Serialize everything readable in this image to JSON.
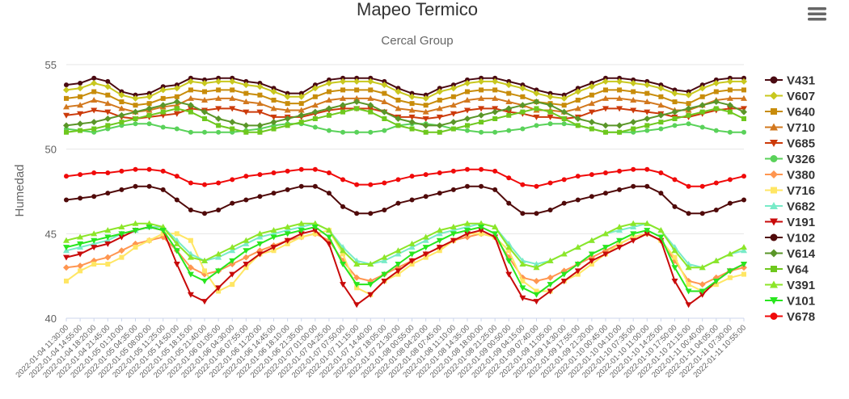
{
  "chart": {
    "title": "Mapeo Termico",
    "subtitle": "Cercal Group",
    "menu_icon": "hamburger-menu-icon"
  },
  "chart_data": {
    "type": "line",
    "title": "Mapeo Termico",
    "subtitle": "Cercal Group",
    "xlabel": "",
    "ylabel": "Humedad",
    "ylim": [
      40,
      55
    ],
    "yticks": [
      40,
      45,
      50,
      55
    ],
    "grid": true,
    "legend_position": "right",
    "x_ticks": [
      "2022-01-04 11:30:00",
      "2022-01-04 14:55:00",
      "2022-01-04 18:20:00",
      "2022-01-04 21:45:00",
      "2022-01-05 01:10:00",
      "2022-01-05 04:35:00",
      "2022-01-05 08:00:00",
      "2022-01-05 11:25:00",
      "2022-01-05 14:50:00",
      "2022-01-05 18:15:00",
      "2022-01-05 21:40:00",
      "2022-01-06 01:05:00",
      "2022-01-06 04:30:00",
      "2022-01-06 07:55:00",
      "2022-01-06 11:20:00",
      "2022-01-06 14:45:00",
      "2022-01-06 18:10:00",
      "2022-01-06 21:35:00",
      "2022-01-07 01:00:00",
      "2022-01-07 04:25:00",
      "2022-01-07 07:50:00",
      "2022-01-07 11:15:00",
      "2022-01-07 14:40:00",
      "2022-01-07 18:05:00",
      "2022-01-07 21:30:00",
      "2022-01-08 00:55:00",
      "2022-01-08 04:20:00",
      "2022-01-08 07:45:00",
      "2022-01-08 11:10:00",
      "2022-01-08 14:35:00",
      "2022-01-08 18:00:00",
      "2022-01-08 21:25:00",
      "2022-01-09 00:50:00",
      "2022-01-09 04:15:00",
      "2022-01-09 07:40:00",
      "2022-01-09 11:05:00",
      "2022-01-09 14:30:00",
      "2022-01-09 17:55:00",
      "2022-01-09 21:20:00",
      "2022-01-10 00:45:00",
      "2022-01-10 04:10:00",
      "2022-01-10 07:35:00",
      "2022-01-10 11:00:00",
      "2022-01-10 14:25:00",
      "2022-01-10 17:50:00",
      "2022-01-10 21:15:00",
      "2022-01-11 00:40:00",
      "2022-01-11 04:05:00",
      "2022-01-11 07:30:00",
      "2022-01-11 10:55:00"
    ],
    "series": [
      {
        "name": "V431",
        "color": "#4a0a12",
        "marker": "circle",
        "values": [
          53.8,
          53.9,
          54.2,
          54.0,
          53.4,
          53.2,
          53.3,
          53.7,
          53.8,
          54.2,
          54.1,
          54.2,
          54.2,
          54.0,
          53.9,
          53.6,
          53.3,
          53.3,
          53.8,
          54.1,
          54.2,
          54.2,
          54.2,
          54.0,
          53.6,
          53.3,
          53.2,
          53.6,
          53.8,
          54.1,
          54.2,
          54.2,
          54.0,
          53.8,
          53.5,
          53.3,
          53.2,
          53.6,
          53.9,
          54.2,
          54.2,
          54.1,
          54.0,
          53.8,
          53.5,
          53.4,
          53.8,
          54.1,
          54.2,
          54.2
        ]
      },
      {
        "name": "V607",
        "color": "#c8c81e",
        "marker": "diamond",
        "values": [
          53.5,
          53.6,
          53.9,
          53.7,
          53.2,
          53.0,
          53.1,
          53.5,
          53.6,
          54.0,
          53.9,
          54.0,
          54.0,
          53.8,
          53.7,
          53.4,
          53.1,
          53.1,
          53.6,
          53.9,
          54.0,
          54.0,
          54.0,
          53.8,
          53.4,
          53.1,
          53.0,
          53.4,
          53.6,
          53.9,
          54.0,
          54.0,
          53.8,
          53.6,
          53.3,
          53.1,
          53.0,
          53.4,
          53.7,
          54.0,
          54.0,
          53.9,
          53.8,
          53.6,
          53.3,
          53.2,
          53.6,
          53.9,
          54.0,
          54.0
        ]
      },
      {
        "name": "V640",
        "color": "#c88c0a",
        "marker": "square",
        "values": [
          53.0,
          53.1,
          53.4,
          53.2,
          52.8,
          52.6,
          52.7,
          53.0,
          53.1,
          53.5,
          53.4,
          53.5,
          53.5,
          53.3,
          53.2,
          52.9,
          52.7,
          52.7,
          53.1,
          53.4,
          53.5,
          53.5,
          53.5,
          53.3,
          52.9,
          52.7,
          52.6,
          52.9,
          53.1,
          53.4,
          53.5,
          53.5,
          53.3,
          53.1,
          52.8,
          52.7,
          52.6,
          52.9,
          53.2,
          53.5,
          53.5,
          53.4,
          53.3,
          53.1,
          52.8,
          52.7,
          53.1,
          53.4,
          53.5,
          53.5
        ]
      },
      {
        "name": "V710",
        "color": "#d2781e",
        "marker": "triangle",
        "values": [
          52.5,
          52.6,
          52.9,
          52.7,
          52.4,
          52.2,
          52.3,
          52.5,
          52.6,
          53.0,
          52.9,
          53.0,
          53.0,
          52.8,
          52.7,
          52.4,
          52.3,
          52.3,
          52.6,
          52.9,
          53.0,
          53.0,
          53.0,
          52.8,
          52.4,
          52.3,
          52.2,
          52.4,
          52.6,
          52.9,
          53.0,
          53.0,
          52.8,
          52.6,
          52.3,
          52.3,
          52.2,
          52.4,
          52.7,
          53.0,
          53.0,
          52.9,
          52.8,
          52.6,
          52.3,
          52.3,
          52.6,
          52.9,
          53.0,
          53.0
        ]
      },
      {
        "name": "V685",
        "color": "#cc3a0a",
        "marker": "triangle-down",
        "values": [
          52.0,
          52.1,
          52.3,
          52.2,
          51.9,
          51.8,
          51.9,
          52.0,
          52.1,
          52.4,
          52.3,
          52.4,
          52.4,
          52.2,
          52.2,
          51.9,
          51.9,
          51.9,
          52.1,
          52.3,
          52.4,
          52.4,
          52.4,
          52.2,
          51.9,
          51.9,
          51.8,
          51.9,
          52.1,
          52.3,
          52.4,
          52.4,
          52.2,
          52.1,
          51.9,
          51.9,
          51.8,
          51.9,
          52.2,
          52.4,
          52.4,
          52.3,
          52.2,
          52.1,
          51.9,
          51.9,
          52.1,
          52.3,
          52.4,
          52.4
        ]
      },
      {
        "name": "V326",
        "color": "#5ad25a",
        "marker": "circle",
        "values": [
          51.2,
          51.1,
          51.0,
          51.2,
          51.4,
          51.5,
          51.5,
          51.3,
          51.2,
          51.0,
          51.0,
          51.0,
          51.0,
          51.1,
          51.2,
          51.4,
          51.5,
          51.5,
          51.3,
          51.1,
          51.0,
          51.0,
          51.0,
          51.1,
          51.4,
          51.5,
          51.5,
          51.4,
          51.2,
          51.1,
          51.0,
          51.0,
          51.1,
          51.2,
          51.4,
          51.5,
          51.5,
          51.4,
          51.2,
          51.0,
          51.0,
          51.0,
          51.1,
          51.2,
          51.4,
          51.5,
          51.3,
          51.1,
          51.0,
          51.0
        ]
      },
      {
        "name": "V380",
        "color": "#ff9650",
        "marker": "diamond",
        "values": [
          43.0,
          43.1,
          43.4,
          43.6,
          44.0,
          44.4,
          44.6,
          44.8,
          44.0,
          43.0,
          42.6,
          42.8,
          43.2,
          43.6,
          44.0,
          44.3,
          44.6,
          44.8,
          45.0,
          44.6,
          43.4,
          42.4,
          42.2,
          42.6,
          43.0,
          43.4,
          43.8,
          44.2,
          44.6,
          44.8,
          45.0,
          44.8,
          43.6,
          42.4,
          42.2,
          42.4,
          42.8,
          43.2,
          43.6,
          44.0,
          44.4,
          44.8,
          45.0,
          44.6,
          43.4,
          42.2,
          42.0,
          42.4,
          42.8,
          43.0
        ]
      },
      {
        "name": "V716",
        "color": "#ffe664",
        "marker": "square",
        "values": [
          42.2,
          42.8,
          43.2,
          43.2,
          43.6,
          44.2,
          44.6,
          45.0,
          45.0,
          44.6,
          42.8,
          41.6,
          42.0,
          43.0,
          43.8,
          44.0,
          44.4,
          44.8,
          45.0,
          45.2,
          43.8,
          41.8,
          41.4,
          42.2,
          42.6,
          43.2,
          43.6,
          44.0,
          44.6,
          45.0,
          45.0,
          44.8,
          44.0,
          42.2,
          41.6,
          41.6,
          42.2,
          42.6,
          43.2,
          43.8,
          44.4,
          44.8,
          45.0,
          44.6,
          43.6,
          42.0,
          41.6,
          42.0,
          42.4,
          42.6
        ]
      },
      {
        "name": "V682",
        "color": "#78ebc8",
        "marker": "triangle",
        "values": [
          44.0,
          44.2,
          44.4,
          44.6,
          45.0,
          45.2,
          45.4,
          45.4,
          44.6,
          43.8,
          43.4,
          43.6,
          44.0,
          44.4,
          44.8,
          45.0,
          45.2,
          45.4,
          45.6,
          45.2,
          44.2,
          43.4,
          43.2,
          43.4,
          43.8,
          44.2,
          44.6,
          45.0,
          45.2,
          45.4,
          45.6,
          45.4,
          44.4,
          43.4,
          43.2,
          43.4,
          43.8,
          44.2,
          44.6,
          45.0,
          45.2,
          45.4,
          45.6,
          45.2,
          44.2,
          43.2,
          43.0,
          43.4,
          43.8,
          44.0
        ]
      },
      {
        "name": "V191",
        "color": "#c80a0a",
        "marker": "triangle-down",
        "values": [
          43.6,
          43.8,
          44.2,
          44.4,
          44.8,
          45.2,
          45.4,
          45.2,
          43.2,
          41.4,
          41.0,
          41.8,
          42.6,
          43.2,
          43.8,
          44.2,
          44.6,
          45.0,
          45.2,
          44.4,
          42.0,
          40.8,
          41.4,
          42.2,
          42.8,
          43.4,
          43.8,
          44.2,
          44.6,
          45.0,
          45.2,
          44.8,
          42.6,
          41.2,
          41.0,
          41.6,
          42.2,
          42.8,
          43.4,
          43.8,
          44.2,
          44.6,
          45.0,
          44.6,
          42.2,
          40.8,
          41.4,
          42.2,
          42.8,
          43.2
        ]
      },
      {
        "name": "V102",
        "color": "#500a0a",
        "marker": "circle",
        "values": [
          47.0,
          47.1,
          47.2,
          47.4,
          47.6,
          47.8,
          47.8,
          47.6,
          47.0,
          46.4,
          46.2,
          46.4,
          46.8,
          47.0,
          47.2,
          47.4,
          47.6,
          47.8,
          47.8,
          47.4,
          46.6,
          46.2,
          46.2,
          46.4,
          46.8,
          47.0,
          47.2,
          47.4,
          47.6,
          47.8,
          47.8,
          47.6,
          46.8,
          46.2,
          46.2,
          46.4,
          46.8,
          47.0,
          47.2,
          47.4,
          47.6,
          47.8,
          47.8,
          47.4,
          46.6,
          46.2,
          46.2,
          46.4,
          46.8,
          47.0
        ]
      },
      {
        "name": "V614",
        "color": "#5a9628",
        "marker": "diamond",
        "values": [
          51.4,
          51.5,
          51.6,
          51.8,
          52.0,
          52.2,
          52.4,
          52.6,
          52.8,
          52.6,
          52.2,
          51.8,
          51.6,
          51.4,
          51.4,
          51.6,
          51.8,
          52.0,
          52.2,
          52.4,
          52.6,
          52.8,
          52.6,
          52.2,
          51.8,
          51.6,
          51.4,
          51.4,
          51.6,
          51.8,
          52.0,
          52.2,
          52.4,
          52.6,
          52.8,
          52.6,
          52.2,
          51.8,
          51.6,
          51.4,
          51.4,
          51.6,
          51.8,
          52.0,
          52.2,
          52.4,
          52.6,
          52.8,
          52.6,
          52.2
        ]
      },
      {
        "name": "V64",
        "color": "#6ec81e",
        "marker": "square",
        "values": [
          51.0,
          51.1,
          51.2,
          51.4,
          51.6,
          51.8,
          52.0,
          52.2,
          52.4,
          52.2,
          51.8,
          51.4,
          51.2,
          51.0,
          51.0,
          51.2,
          51.4,
          51.6,
          51.8,
          52.0,
          52.2,
          52.4,
          52.2,
          51.8,
          51.4,
          51.2,
          51.0,
          51.0,
          51.2,
          51.4,
          51.6,
          51.8,
          52.0,
          52.2,
          52.4,
          52.2,
          51.8,
          51.4,
          51.2,
          51.0,
          51.0,
          51.2,
          51.4,
          51.6,
          51.8,
          52.0,
          52.2,
          52.4,
          52.2,
          51.8
        ]
      },
      {
        "name": "V391",
        "color": "#8ce628",
        "marker": "triangle",
        "values": [
          44.6,
          44.8,
          45.0,
          45.2,
          45.4,
          45.6,
          45.6,
          45.4,
          44.4,
          43.6,
          43.4,
          43.8,
          44.2,
          44.6,
          45.0,
          45.2,
          45.4,
          45.6,
          45.6,
          45.2,
          44.0,
          43.2,
          43.2,
          43.6,
          44.0,
          44.4,
          44.8,
          45.2,
          45.4,
          45.6,
          45.6,
          45.4,
          44.2,
          43.2,
          43.0,
          43.4,
          43.8,
          44.2,
          44.6,
          45.0,
          45.4,
          45.6,
          45.6,
          45.2,
          44.0,
          43.0,
          43.0,
          43.4,
          43.8,
          44.2
        ]
      },
      {
        "name": "V101",
        "color": "#28e61e",
        "marker": "triangle-down",
        "values": [
          44.2,
          44.4,
          44.6,
          44.8,
          45.0,
          45.2,
          45.4,
          45.2,
          44.0,
          42.6,
          42.2,
          42.8,
          43.4,
          44.0,
          44.4,
          44.8,
          45.0,
          45.2,
          45.4,
          44.8,
          43.2,
          42.0,
          42.0,
          42.6,
          43.2,
          43.8,
          44.2,
          44.6,
          45.0,
          45.2,
          45.4,
          45.0,
          43.4,
          41.8,
          41.4,
          42.0,
          42.6,
          43.2,
          43.8,
          44.2,
          44.6,
          45.0,
          45.2,
          44.8,
          43.0,
          41.6,
          41.6,
          42.2,
          42.8,
          43.2
        ]
      },
      {
        "name": "V678",
        "color": "#f00a0a",
        "marker": "circle",
        "values": [
          48.4,
          48.5,
          48.6,
          48.6,
          48.7,
          48.8,
          48.8,
          48.7,
          48.4,
          48.0,
          47.9,
          48.0,
          48.2,
          48.4,
          48.5,
          48.6,
          48.7,
          48.8,
          48.8,
          48.6,
          48.2,
          47.9,
          47.9,
          48.0,
          48.2,
          48.4,
          48.5,
          48.6,
          48.7,
          48.8,
          48.8,
          48.7,
          48.3,
          47.9,
          47.8,
          48.0,
          48.2,
          48.4,
          48.5,
          48.6,
          48.7,
          48.8,
          48.8,
          48.6,
          48.2,
          47.8,
          47.8,
          48.0,
          48.2,
          48.4
        ]
      }
    ]
  }
}
